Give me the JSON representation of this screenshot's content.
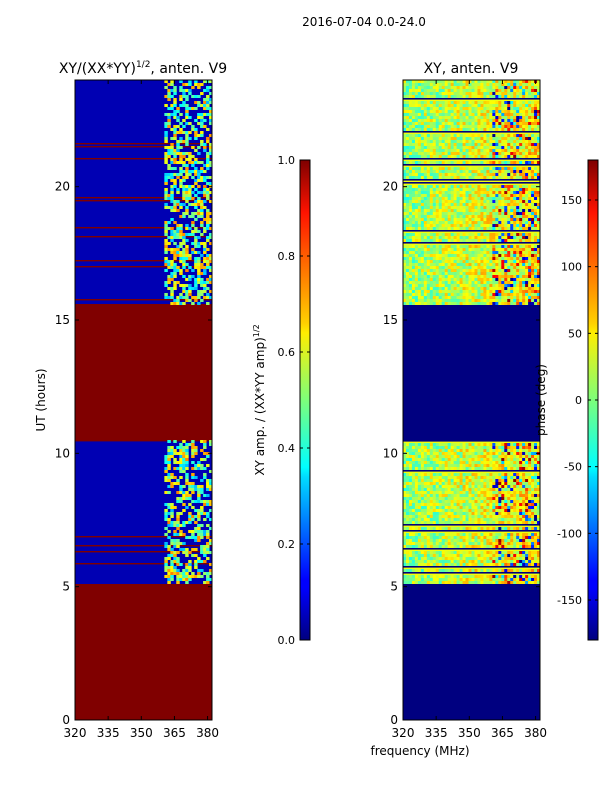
{
  "suptitle": "2016-07-04 0.0-24.0",
  "colors": {
    "saturated": "#800000",
    "background_blue": "#0000c8",
    "deep_blue": "#00007f"
  },
  "chart_data": [
    {
      "type": "heatmap",
      "panel": "left",
      "title_main": "XY/(XX*YY)",
      "title_sup": "1/2",
      "title_tail": ", anten. V9",
      "xlabel": "",
      "ylabel": "UT (hours)",
      "xlim": [
        320,
        382
      ],
      "ylim": [
        0,
        24
      ],
      "xticks": [
        "320",
        "335",
        "350",
        "365",
        "380"
      ],
      "xtick_values": [
        320,
        335,
        350,
        365,
        380
      ],
      "yticks": [
        "0",
        "5",
        "10",
        "15",
        "20"
      ],
      "ytick_values": [
        0,
        5,
        10,
        15,
        20
      ],
      "colormap": "jet",
      "colorbar": {
        "range": [
          0.0,
          1.0
        ],
        "ticks": [
          "0.0",
          "0.2",
          "0.4",
          "0.6",
          "0.8",
          "1.0"
        ],
        "tick_values": [
          0.0,
          0.2,
          0.4,
          0.6,
          0.8,
          1.0
        ],
        "label_main": "XY amp. / (XX*YY amp)",
        "label_sup": "1/2"
      },
      "flagged_bands_hours": [
        [
          0,
          5.1
        ],
        [
          10.5,
          15.6
        ]
      ],
      "flagged_value": 1.0,
      "active_bands_hours": [
        [
          5.1,
          10.5
        ],
        [
          15.6,
          24
        ]
      ],
      "active_background_value": 0.05,
      "hot_channel_range_mhz": [
        360,
        382
      ]
    },
    {
      "type": "heatmap",
      "panel": "right",
      "title": "XY, anten. V9",
      "xlabel": "frequency (MHz)",
      "ylabel": "",
      "xlim": [
        320,
        382
      ],
      "ylim": [
        0,
        24
      ],
      "xticks": [
        "320",
        "335",
        "350",
        "365",
        "380"
      ],
      "xtick_values": [
        320,
        335,
        350,
        365,
        380
      ],
      "yticks": [
        "0",
        "5",
        "10",
        "15",
        "20"
      ],
      "ytick_values": [
        0,
        5,
        10,
        15,
        20
      ],
      "colormap": "jet",
      "colorbar": {
        "range": [
          -180,
          180
        ],
        "ticks": [
          "-150",
          "-100",
          "-50",
          "0",
          "50",
          "100",
          "150"
        ],
        "tick_values": [
          -150,
          -100,
          -50,
          0,
          50,
          100,
          150
        ],
        "label": "phase (deg)"
      },
      "flagged_bands_hours": [
        [
          0,
          5.1
        ],
        [
          10.5,
          15.6
        ]
      ],
      "flagged_value": -180,
      "active_bands_hours": [
        [
          5.1,
          10.5
        ],
        [
          15.6,
          24
        ]
      ],
      "active_background_value": 40
    }
  ]
}
